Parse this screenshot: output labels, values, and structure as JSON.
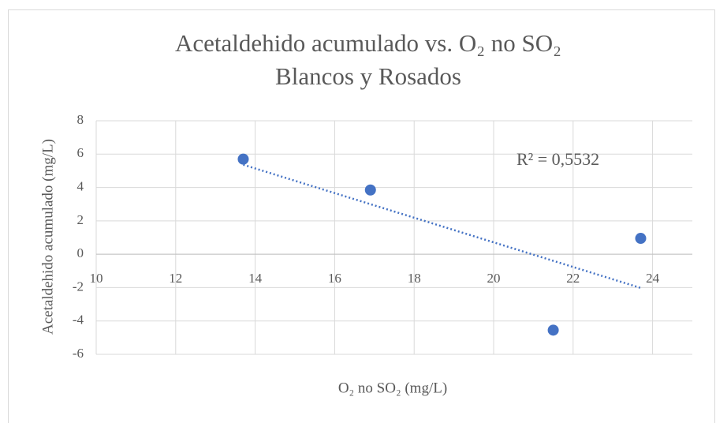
{
  "chart_data": {
    "type": "scatter",
    "title": "Acetaldehido  acumulado vs. O₂ no SO₂",
    "subtitle": "Blancos y Rosados",
    "xlabel": "O₂ no SO₂ (mg/L)",
    "ylabel": "Acetaldehido acumulado (mg/L)",
    "x": [
      13.7,
      16.9,
      21.5,
      23.7
    ],
    "values": [
      5.7,
      3.85,
      -4.55,
      0.95
    ],
    "color": "#4472c4",
    "trendline": {
      "type": "linear",
      "color": "#4472c4",
      "annotation": "R² = 0,5532"
    },
    "xlim": [
      10,
      25
    ],
    "xticks": [
      10,
      12,
      14,
      16,
      18,
      20,
      22,
      24
    ],
    "ylim": [
      -6,
      8
    ],
    "yticks": [
      -6,
      -4,
      -2,
      0,
      2,
      4,
      6,
      8
    ],
    "grid": true
  }
}
